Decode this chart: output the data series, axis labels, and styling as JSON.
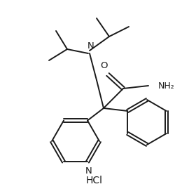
{
  "bg_color": "#ffffff",
  "line_color": "#1a1a1a",
  "line_width": 1.4,
  "font_size": 9.5,
  "hcl_font_size": 10,
  "figsize": [
    2.7,
    2.79
  ],
  "dpi": 100,
  "xlim": [
    0,
    270
  ],
  "ylim": [
    0,
    279
  ]
}
